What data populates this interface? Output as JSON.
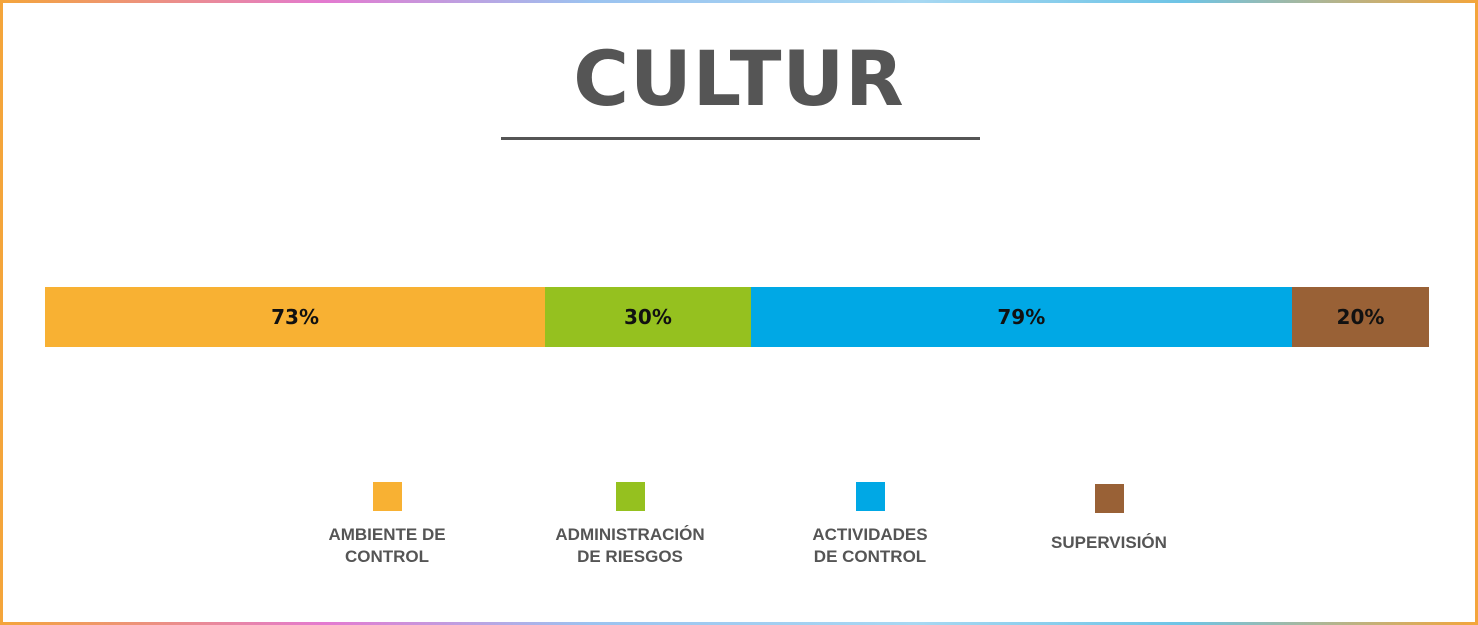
{
  "chart_data": {
    "type": "bar",
    "orientation": "horizontal-stacked",
    "title": "CULTUR",
    "categories": [
      "AMBIENTE DE CONTROL",
      "ADMINISTRACIÓN DE RIESGOS",
      "ACTIVIDADES DE CONTROL",
      "SUPERVISIÓN"
    ],
    "values": [
      73,
      30,
      79,
      20
    ],
    "data_labels": [
      "73%",
      "30%",
      "79%",
      "20%"
    ],
    "colors": [
      "#f8b133",
      "#95c11f",
      "#00a8e5",
      "#996136"
    ],
    "legend": {
      "placement": "bottom",
      "items": [
        {
          "lines": [
            "AMBIENTE DE",
            "CONTROL"
          ],
          "color": "#f8b133"
        },
        {
          "lines": [
            "ADMINISTRACIÓN",
            "DE RIESGOS"
          ],
          "color": "#95c11f"
        },
        {
          "lines": [
            "ACTIVIDADES",
            "DE CONTROL"
          ],
          "color": "#00a8e5"
        },
        {
          "lines": [
            "SUPERVISIÓN"
          ],
          "color": "#996136"
        }
      ]
    },
    "grid": false
  }
}
